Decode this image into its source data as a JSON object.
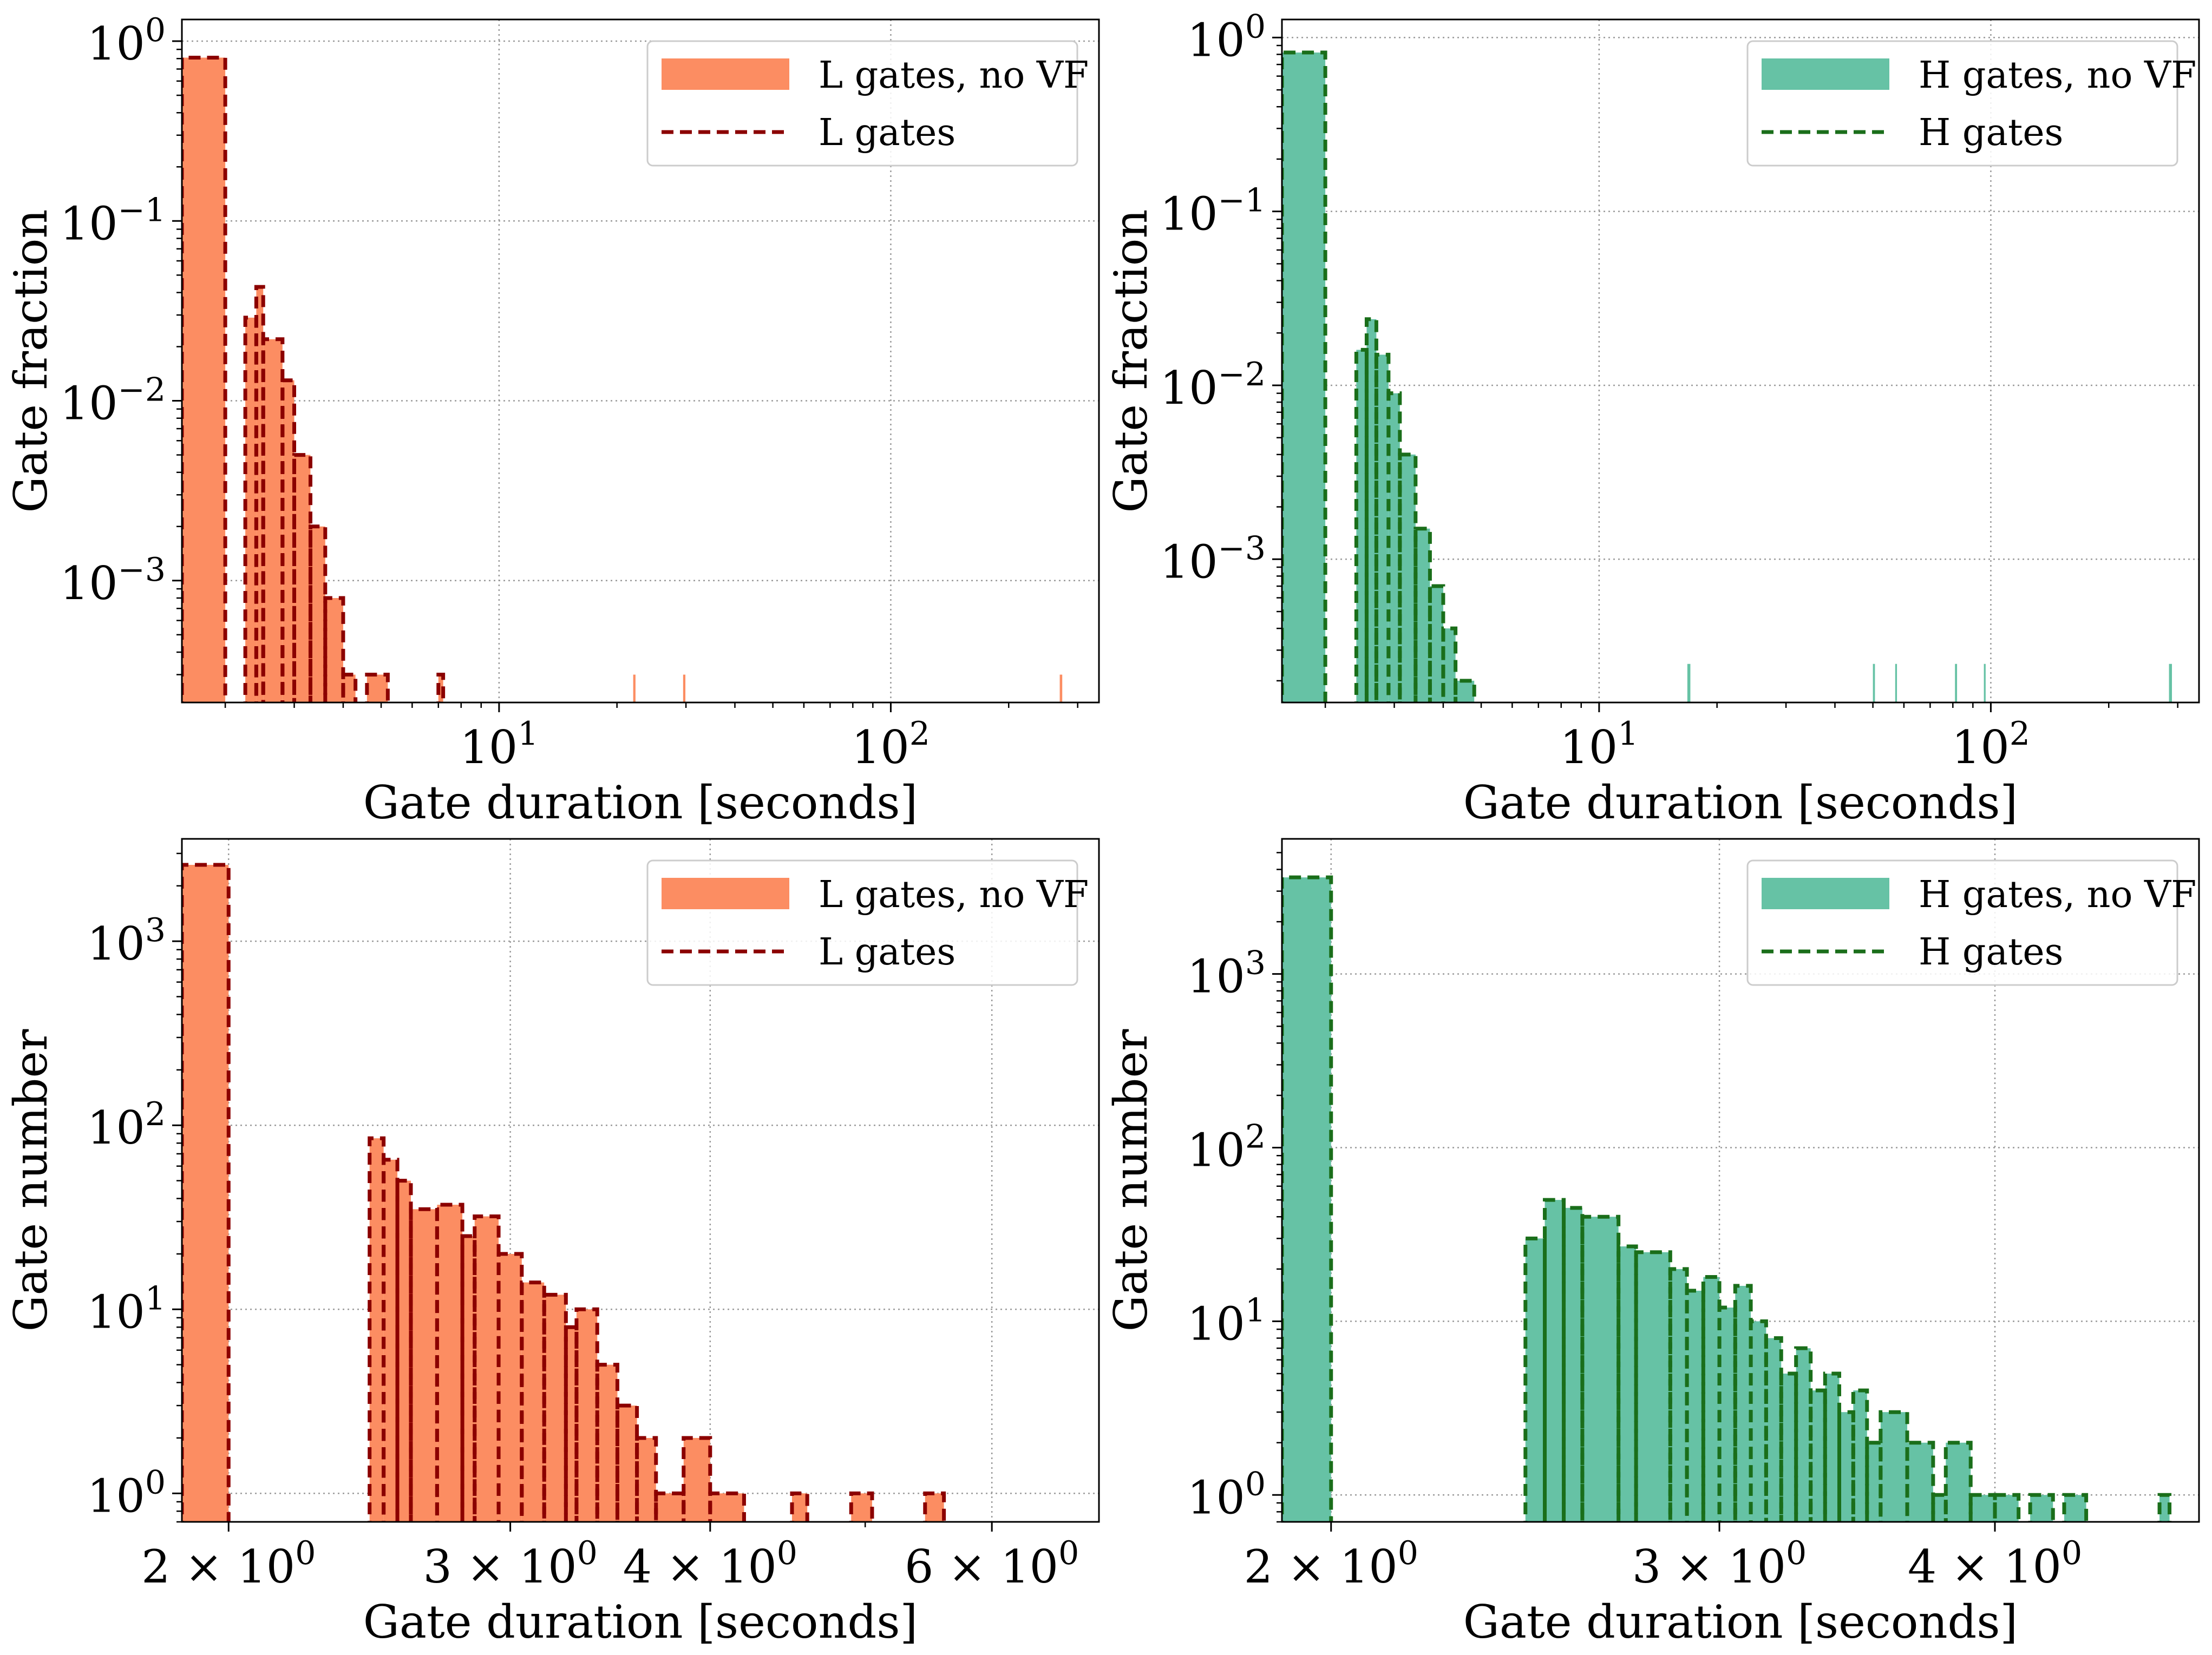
{
  "figure": {
    "colors": {
      "l_fill": "#fc8d62",
      "l_line": "#8b0000",
      "h_fill": "#66c2a5",
      "h_line": "#1a6e1a",
      "grid": "#9a9a9a"
    }
  },
  "chart_data": [
    {
      "type": "bar",
      "subtype": "step-histogram",
      "xlabel": "Gate duration [seconds]",
      "ylabel": "Gate fraction",
      "xscale": "log",
      "yscale": "log",
      "xlim": [
        1.55,
        340
      ],
      "ylim": [
        0.00021,
        1.32
      ],
      "xticks": [
        10,
        100
      ],
      "xtick_labels": [
        {
          "b": "10",
          "e": "1"
        },
        {
          "b": "10",
          "e": "2"
        }
      ],
      "yticks": [
        1,
        0.1,
        0.01,
        0.001
      ],
      "ytick_labels": [
        {
          "b": "10",
          "e": "0"
        },
        {
          "b": "10",
          "e": "−1"
        },
        {
          "b": "10",
          "e": "−2"
        },
        {
          "b": "10",
          "e": "−3"
        }
      ],
      "grid": true,
      "legend_position": "top-right",
      "series": [
        {
          "name": "L gates, no VF",
          "style": "filled",
          "color": "#fc8d62",
          "bins": [
            [
              1.55,
              2.0,
              0.81
            ],
            [
              2.25,
              2.4,
              0.029
            ],
            [
              2.4,
              2.5,
              0.043
            ],
            [
              2.5,
              2.8,
              0.022
            ],
            [
              2.8,
              3.0,
              0.013
            ],
            [
              3.0,
              3.3,
              0.005
            ],
            [
              3.3,
              3.6,
              0.002
            ],
            [
              3.6,
              4.0,
              0.0008
            ],
            [
              4.0,
              4.3,
              0.0003
            ],
            [
              4.6,
              5.2,
              0.0003
            ],
            [
              7.0,
              7.2,
              0.0003
            ],
            [
              22,
              22.3,
              0.0003
            ],
            [
              29.5,
              29.9,
              0.0003
            ],
            [
              270,
              274,
              0.0003
            ]
          ]
        },
        {
          "name": "L gates",
          "style": "dashed-step",
          "color": "#8b0000",
          "bins": [
            [
              1.55,
              2.0,
              0.81
            ],
            [
              2.25,
              2.4,
              0.029
            ],
            [
              2.4,
              2.5,
              0.043
            ],
            [
              2.5,
              2.8,
              0.022
            ],
            [
              2.8,
              3.0,
              0.013
            ],
            [
              3.0,
              3.3,
              0.005
            ],
            [
              3.3,
              3.6,
              0.002
            ],
            [
              3.6,
              4.0,
              0.0008
            ],
            [
              4.0,
              4.3,
              0.0003
            ],
            [
              4.6,
              5.2,
              0.0003
            ],
            [
              7.0,
              7.2,
              0.0003
            ]
          ]
        }
      ]
    },
    {
      "type": "bar",
      "subtype": "step-histogram",
      "xlabel": "Gate duration [seconds]",
      "ylabel": "Gate fraction",
      "xscale": "log",
      "yscale": "log",
      "xlim": [
        1.55,
        340
      ],
      "ylim": [
        0.00015,
        1.27
      ],
      "xticks": [
        10,
        100
      ],
      "xtick_labels": [
        {
          "b": "10",
          "e": "1"
        },
        {
          "b": "10",
          "e": "2"
        }
      ],
      "yticks": [
        1,
        0.1,
        0.01,
        0.001
      ],
      "ytick_labels": [
        {
          "b": "10",
          "e": "0"
        },
        {
          "b": "10",
          "e": "−1"
        },
        {
          "b": "10",
          "e": "−2"
        },
        {
          "b": "10",
          "e": "−3"
        }
      ],
      "grid": true,
      "legend_position": "top-right",
      "series": [
        {
          "name": "H gates, no VF",
          "style": "filled",
          "color": "#66c2a5",
          "bins": [
            [
              1.55,
              2.0,
              0.82
            ],
            [
              2.4,
              2.55,
              0.016
            ],
            [
              2.55,
              2.7,
              0.024
            ],
            [
              2.7,
              2.9,
              0.015
            ],
            [
              2.9,
              3.1,
              0.009
            ],
            [
              3.1,
              3.4,
              0.004
            ],
            [
              3.4,
              3.7,
              0.0015
            ],
            [
              3.7,
              4.0,
              0.0007
            ],
            [
              4.0,
              4.3,
              0.0004
            ],
            [
              4.3,
              4.8,
              0.0002
            ],
            [
              16.8,
              17.1,
              0.00025
            ],
            [
              50,
              50.6,
              0.00025
            ],
            [
              57,
              57.6,
              0.00025
            ],
            [
              81,
              82,
              0.00025
            ],
            [
              96,
              97,
              0.00025
            ],
            [
              285,
              290,
              0.00025
            ]
          ]
        },
        {
          "name": "H gates",
          "style": "dashed-step",
          "color": "#1a6e1a",
          "bins": [
            [
              1.55,
              2.0,
              0.82
            ],
            [
              2.4,
              2.55,
              0.016
            ],
            [
              2.55,
              2.7,
              0.024
            ],
            [
              2.7,
              2.9,
              0.015
            ],
            [
              2.9,
              3.1,
              0.009
            ],
            [
              3.1,
              3.4,
              0.004
            ],
            [
              3.4,
              3.7,
              0.0015
            ],
            [
              3.7,
              4.0,
              0.0007
            ],
            [
              4.0,
              4.3,
              0.0004
            ],
            [
              4.3,
              4.8,
              0.0002
            ]
          ]
        }
      ]
    },
    {
      "type": "bar",
      "subtype": "step-histogram",
      "xlabel": "Gate duration [seconds]",
      "ylabel": "Gate number",
      "xscale": "log",
      "yscale": "log",
      "xlim": [
        1.87,
        7.0
      ],
      "ylim": [
        0.7,
        3600
      ],
      "xticks": [
        2,
        3,
        4,
        6
      ],
      "xtick_labels": [
        {
          "b": "2 × 10",
          "e": "0"
        },
        {
          "b": "3 × 10",
          "e": "0"
        },
        {
          "b": "4 × 10",
          "e": "0"
        },
        {
          "b": "6 × 10",
          "e": "0"
        }
      ],
      "yticks": [
        1,
        10,
        100,
        1000
      ],
      "ytick_labels": [
        {
          "b": "10",
          "e": "0"
        },
        {
          "b": "10",
          "e": "1"
        },
        {
          "b": "10",
          "e": "2"
        },
        {
          "b": "10",
          "e": "3"
        }
      ],
      "grid": true,
      "legend_position": "top-right",
      "series": [
        {
          "name": "L gates, no VF",
          "style": "filled",
          "color": "#fc8d62",
          "bins": [
            [
              1.87,
              2.0,
              2600
            ],
            [
              2.45,
              2.5,
              85
            ],
            [
              2.5,
              2.55,
              65
            ],
            [
              2.55,
              2.6,
              50
            ],
            [
              2.6,
              2.7,
              35
            ],
            [
              2.7,
              2.8,
              37
            ],
            [
              2.8,
              2.85,
              25
            ],
            [
              2.85,
              2.95,
              32
            ],
            [
              2.95,
              3.05,
              20
            ],
            [
              3.05,
              3.15,
              14
            ],
            [
              3.15,
              3.25,
              12
            ],
            [
              3.25,
              3.3,
              8
            ],
            [
              3.3,
              3.4,
              10
            ],
            [
              3.4,
              3.5,
              5
            ],
            [
              3.5,
              3.6,
              3
            ],
            [
              3.6,
              3.7,
              2
            ],
            [
              3.7,
              3.85,
              1
            ],
            [
              3.85,
              4.0,
              2
            ],
            [
              4.0,
              4.2,
              1
            ],
            [
              4.5,
              4.6,
              1
            ],
            [
              4.9,
              5.05,
              1
            ],
            [
              5.45,
              5.6,
              1
            ]
          ]
        },
        {
          "name": "L gates",
          "style": "dashed-step",
          "color": "#8b0000",
          "bins": [
            [
              1.87,
              2.0,
              2600
            ],
            [
              2.45,
              2.5,
              85
            ],
            [
              2.5,
              2.55,
              65
            ],
            [
              2.55,
              2.6,
              50
            ],
            [
              2.6,
              2.7,
              35
            ],
            [
              2.7,
              2.8,
              37
            ],
            [
              2.8,
              2.85,
              25
            ],
            [
              2.85,
              2.95,
              32
            ],
            [
              2.95,
              3.05,
              20
            ],
            [
              3.05,
              3.15,
              14
            ],
            [
              3.15,
              3.25,
              12
            ],
            [
              3.25,
              3.3,
              8
            ],
            [
              3.3,
              3.4,
              10
            ],
            [
              3.4,
              3.5,
              5
            ],
            [
              3.5,
              3.6,
              3
            ],
            [
              3.6,
              3.7,
              2
            ],
            [
              3.7,
              3.85,
              1
            ],
            [
              3.85,
              4.0,
              2
            ],
            [
              4.0,
              4.2,
              1
            ],
            [
              4.5,
              4.6,
              1
            ],
            [
              4.9,
              5.05,
              1
            ],
            [
              5.45,
              5.6,
              1
            ]
          ]
        }
      ]
    },
    {
      "type": "bar",
      "subtype": "step-histogram",
      "xlabel": "Gate duration [seconds]",
      "ylabel": "Gate number",
      "xscale": "log",
      "yscale": "log",
      "xlim": [
        1.9,
        4.95
      ],
      "ylim": [
        0.7,
        6000
      ],
      "xticks": [
        2,
        3,
        4
      ],
      "xtick_labels": [
        {
          "b": "2 × 10",
          "e": "0"
        },
        {
          "b": "3 × 10",
          "e": "0"
        },
        {
          "b": "4 × 10",
          "e": "0"
        }
      ],
      "yticks": [
        1,
        10,
        100,
        1000
      ],
      "ytick_labels": [
        {
          "b": "10",
          "e": "0"
        },
        {
          "b": "10",
          "e": "1"
        },
        {
          "b": "10",
          "e": "2"
        },
        {
          "b": "10",
          "e": "3"
        }
      ],
      "grid": true,
      "legend_position": "top-right",
      "series": [
        {
          "name": "H gates, no VF",
          "style": "filled",
          "color": "#66c2a5",
          "bins": [
            [
              1.9,
              2.0,
              3600
            ],
            [
              2.45,
              2.5,
              30
            ],
            [
              2.5,
              2.55,
              50
            ],
            [
              2.55,
              2.6,
              45
            ],
            [
              2.6,
              2.7,
              40
            ],
            [
              2.7,
              2.75,
              27
            ],
            [
              2.75,
              2.85,
              25
            ],
            [
              2.85,
              2.9,
              20
            ],
            [
              2.9,
              2.95,
              15
            ],
            [
              2.95,
              3.0,
              18
            ],
            [
              3.0,
              3.05,
              12
            ],
            [
              3.05,
              3.1,
              16
            ],
            [
              3.1,
              3.15,
              10
            ],
            [
              3.15,
              3.2,
              8
            ],
            [
              3.2,
              3.25,
              5
            ],
            [
              3.25,
              3.3,
              7
            ],
            [
              3.3,
              3.35,
              4
            ],
            [
              3.35,
              3.4,
              5
            ],
            [
              3.4,
              3.45,
              3
            ],
            [
              3.45,
              3.5,
              4
            ],
            [
              3.5,
              3.55,
              2
            ],
            [
              3.55,
              3.65,
              3
            ],
            [
              3.65,
              3.75,
              2
            ],
            [
              3.75,
              3.8,
              1
            ],
            [
              3.8,
              3.9,
              2
            ],
            [
              3.9,
              4.0,
              1
            ],
            [
              4.0,
              4.1,
              1
            ],
            [
              4.15,
              4.25,
              1
            ],
            [
              4.3,
              4.4,
              1
            ],
            [
              4.75,
              4.8,
              1
            ]
          ]
        },
        {
          "name": "H gates",
          "style": "dashed-step",
          "color": "#1a6e1a",
          "bins": [
            [
              1.9,
              2.0,
              3600
            ],
            [
              2.45,
              2.5,
              30
            ],
            [
              2.5,
              2.55,
              50
            ],
            [
              2.55,
              2.6,
              45
            ],
            [
              2.6,
              2.7,
              40
            ],
            [
              2.7,
              2.75,
              27
            ],
            [
              2.75,
              2.85,
              25
            ],
            [
              2.85,
              2.9,
              20
            ],
            [
              2.9,
              2.95,
              15
            ],
            [
              2.95,
              3.0,
              18
            ],
            [
              3.0,
              3.05,
              12
            ],
            [
              3.05,
              3.1,
              16
            ],
            [
              3.1,
              3.15,
              10
            ],
            [
              3.15,
              3.2,
              8
            ],
            [
              3.2,
              3.25,
              5
            ],
            [
              3.25,
              3.3,
              7
            ],
            [
              3.3,
              3.35,
              4
            ],
            [
              3.35,
              3.4,
              5
            ],
            [
              3.4,
              3.45,
              3
            ],
            [
              3.45,
              3.5,
              4
            ],
            [
              3.5,
              3.55,
              2
            ],
            [
              3.55,
              3.65,
              3
            ],
            [
              3.65,
              3.75,
              2
            ],
            [
              3.75,
              3.8,
              1
            ],
            [
              3.8,
              3.9,
              2
            ],
            [
              3.9,
              4.0,
              1
            ],
            [
              4.0,
              4.1,
              1
            ],
            [
              4.15,
              4.25,
              1
            ],
            [
              4.3,
              4.4,
              1
            ],
            [
              4.75,
              4.8,
              1
            ]
          ]
        }
      ]
    }
  ]
}
